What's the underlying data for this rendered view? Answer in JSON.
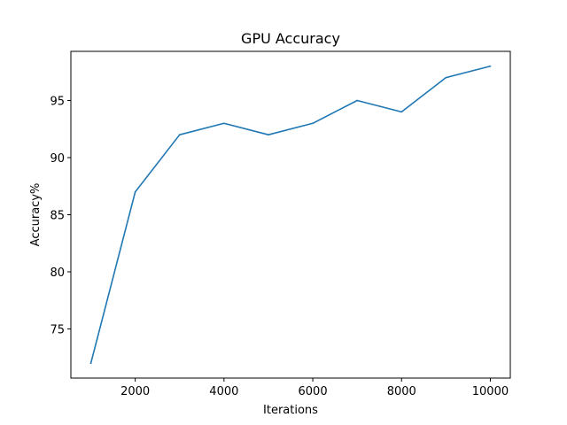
{
  "chart_data": {
    "type": "line",
    "title": "GPU Accuracy",
    "xlabel": "Iterations",
    "ylabel": "Accuracy%",
    "xlim": [
      550,
      10450
    ],
    "ylim": [
      70.7,
      99.3
    ],
    "xticks": [
      2000,
      4000,
      6000,
      8000,
      10000
    ],
    "yticks": [
      75,
      80,
      85,
      90,
      95
    ],
    "grid": false,
    "x": [
      1000,
      2000,
      3000,
      4000,
      5000,
      6000,
      7000,
      8000,
      9000,
      10000
    ],
    "series": [
      {
        "color": "#1f77b4",
        "values": [
          72,
          87,
          92,
          93,
          92,
          93,
          95,
          94,
          97,
          98
        ]
      }
    ]
  }
}
